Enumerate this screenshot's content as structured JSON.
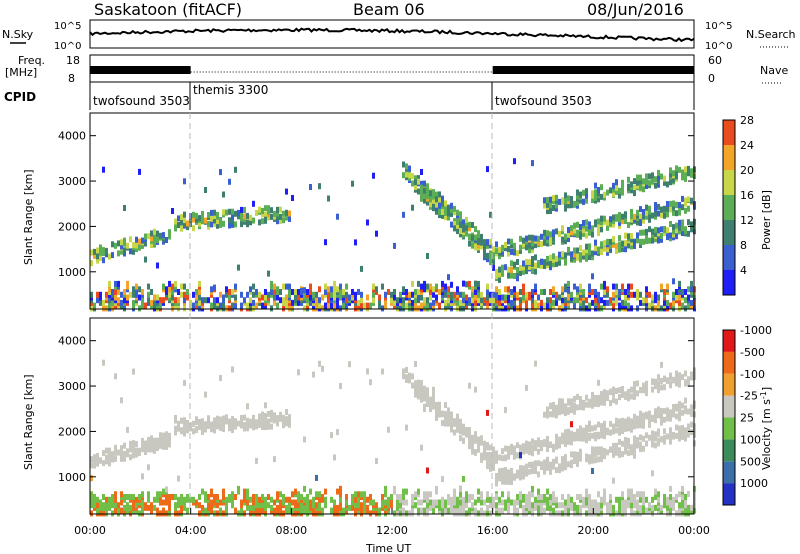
{
  "header": {
    "station": "Saskatoon (fitACF)",
    "beam": "Beam 06",
    "date": "08/Jun/2016"
  },
  "labels": {
    "nsky": "N.Sky",
    "nsearch": "N.Search",
    "freq_line1": "Freq.",
    "freq_line2": "[MHz]",
    "nave": "Nave",
    "cpid": "CPID",
    "power_axis": "Power [dB]",
    "velocity_axis": "Velocity [m s",
    "velocity_axis_exp": "-1",
    "velocity_axis_close": "]"
  },
  "noise_panel": {
    "left_ticks": [
      "10^5",
      "10^0"
    ],
    "right_ticks": [
      "10^5",
      "10^0"
    ]
  },
  "freq_panel": {
    "left_ticks": [
      "18",
      "8"
    ],
    "right_ticks": [
      "60",
      "0"
    ]
  },
  "cpid_segments": [
    {
      "label": "twofsound 3503",
      "start_hour": 0,
      "end_hour": 4
    },
    {
      "label": "themis 3300",
      "start_hour": 4,
      "end_hour": 16
    },
    {
      "label": "twofsound 3503",
      "start_hour": 16,
      "end_hour": 24
    }
  ],
  "chart_data": [
    {
      "type": "heatmap",
      "name": "Power",
      "xlabel": "Time UT",
      "ylabel": "Slant Range [km]",
      "x_ticks": [
        "00:00",
        "04:00",
        "08:00",
        "12:00",
        "16:00",
        "20:00",
        "00:00"
      ],
      "xlim_hours": [
        0,
        24
      ],
      "y_ticks": [
        1000,
        2000,
        3000,
        4000
      ],
      "ylim": [
        180,
        4500
      ],
      "colorbar": {
        "label": "Power [dB]",
        "ticks": [
          4,
          8,
          12,
          16,
          20,
          24,
          28
        ],
        "range": [
          0,
          30
        ],
        "colors": [
          "#1f1ff5",
          "#3a5fd0",
          "#3f7f6f",
          "#5cae56",
          "#c8d64a",
          "#f3a52a",
          "#ea4b1e"
        ]
      },
      "features": [
        {
          "desc": "band",
          "t0": 0.0,
          "t1": 3.2,
          "r0": 1200,
          "r1": 2100,
          "level": 14
        },
        {
          "desc": "band",
          "t0": 3.3,
          "t1": 7.9,
          "r0": 2050,
          "r1": 2450,
          "level": 16
        },
        {
          "desc": "band",
          "t0": 12.5,
          "t1": 16.0,
          "r0": 3400,
          "r1": 1500,
          "level": 12
        },
        {
          "desc": "band",
          "t0": 16.0,
          "t1": 24.0,
          "r0": 800,
          "r1": 2200,
          "level": 8
        },
        {
          "desc": "near-range",
          "t0": 0.0,
          "t1": 24.0,
          "r0": 200,
          "r1": 600,
          "level": 18
        }
      ]
    },
    {
      "type": "heatmap",
      "name": "Velocity",
      "xlabel": "Time UT",
      "ylabel": "Slant Range [km]",
      "x_ticks": [
        "00:00",
        "04:00",
        "08:00",
        "12:00",
        "16:00",
        "20:00",
        "00:00"
      ],
      "xlim_hours": [
        0,
        24
      ],
      "y_ticks": [
        1000,
        2000,
        3000,
        4000
      ],
      "ylim": [
        180,
        4500
      ],
      "colorbar": {
        "label": "Velocity [m s-1]",
        "ticks": [
          "1000",
          "500",
          "100",
          "25",
          "-25",
          "-100",
          "-500",
          "-1000"
        ],
        "colors": [
          "#2331c5",
          "#3a6fa8",
          "#3b8c5a",
          "#6fbf48",
          "#c8c8c0",
          "#f0a030",
          "#ee6a18",
          "#e01818"
        ]
      }
    }
  ],
  "colors": {
    "frame": "#000000",
    "dashed_line": "#bbbbbb",
    "ground_scatter": "#c8c8c0"
  }
}
